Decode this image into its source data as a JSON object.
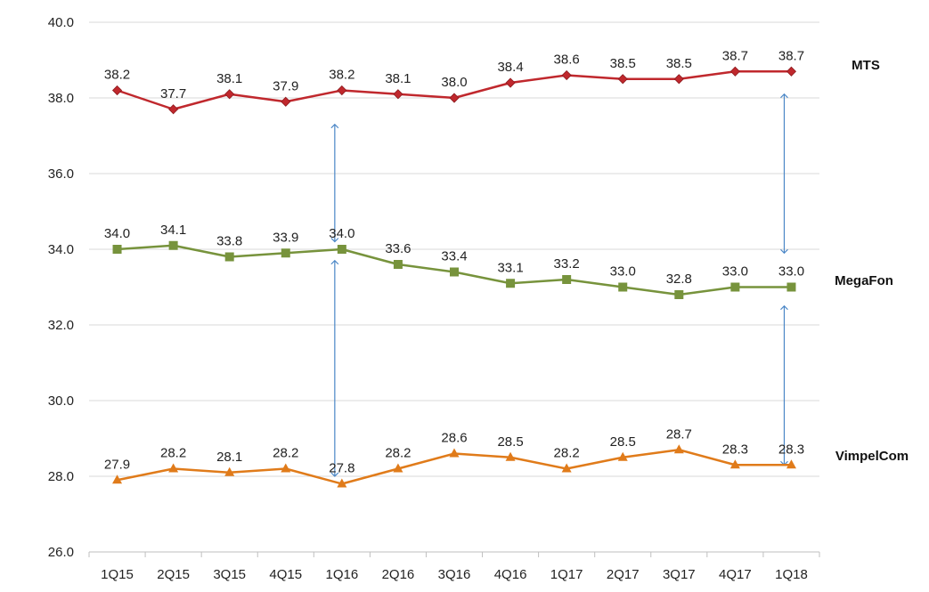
{
  "chart_data": {
    "type": "line",
    "title": "",
    "xlabel": "",
    "ylabel": "",
    "ylim": [
      26.0,
      40.0
    ],
    "yticks": [
      "26.0",
      "28.0",
      "30.0",
      "32.0",
      "34.0",
      "36.0",
      "38.0",
      "40.0"
    ],
    "grid": true,
    "categories": [
      "1Q15",
      "2Q15",
      "3Q15",
      "4Q15",
      "1Q16",
      "2Q16",
      "3Q16",
      "4Q16",
      "1Q17",
      "2Q17",
      "3Q17",
      "4Q17",
      "1Q18"
    ],
    "series": [
      {
        "name": "MTS",
        "color": "#c0282d",
        "marker": "diamond",
        "values": [
          38.2,
          37.7,
          38.1,
          37.9,
          38.2,
          38.1,
          38.0,
          38.4,
          38.6,
          38.5,
          38.5,
          38.7,
          38.7
        ],
        "labels": [
          "38.2",
          "37.7",
          "38.1",
          "37.9",
          "38.2",
          "38.1",
          "38.0",
          "38.4",
          "38.6",
          "38.5",
          "38.5",
          "38.7",
          "38.7"
        ]
      },
      {
        "name": "MegaFon",
        "color": "#77933c",
        "marker": "square",
        "values": [
          34.0,
          34.1,
          33.8,
          33.9,
          34.0,
          33.6,
          33.4,
          33.1,
          33.2,
          33.0,
          32.8,
          33.0,
          33.0
        ],
        "labels": [
          "34.0",
          "34.1",
          "33.8",
          "33.9",
          "34.0",
          "33.6",
          "33.4",
          "33.1",
          "33.2",
          "33.0",
          "32.8",
          "33.0",
          "33.0"
        ]
      },
      {
        "name": "VimpelCom",
        "color": "#e07b1a",
        "marker": "triangle",
        "values": [
          27.9,
          28.2,
          28.1,
          28.2,
          27.8,
          28.2,
          28.6,
          28.5,
          28.2,
          28.5,
          28.7,
          28.3,
          28.3
        ],
        "labels": [
          "27.9",
          "28.2",
          "28.1",
          "28.2",
          "27.8",
          "28.2",
          "28.6",
          "28.5",
          "28.2",
          "28.5",
          "28.7",
          "28.3",
          "28.3"
        ]
      }
    ],
    "annotations": [
      {
        "type": "double-arrow",
        "category": "1Q16",
        "from": 34.2,
        "to": 37.3
      },
      {
        "type": "double-arrow",
        "category": "1Q16",
        "from": 28.0,
        "to": 33.7
      },
      {
        "type": "double-arrow",
        "category": "1Q18",
        "from": 33.9,
        "to": 38.1
      },
      {
        "type": "double-arrow",
        "category": "1Q18",
        "from": 28.3,
        "to": 32.5
      }
    ],
    "arrow_color": "#4a86c6",
    "grid_color": "#d9d9d9",
    "axis_color": "#bfbfbf"
  }
}
